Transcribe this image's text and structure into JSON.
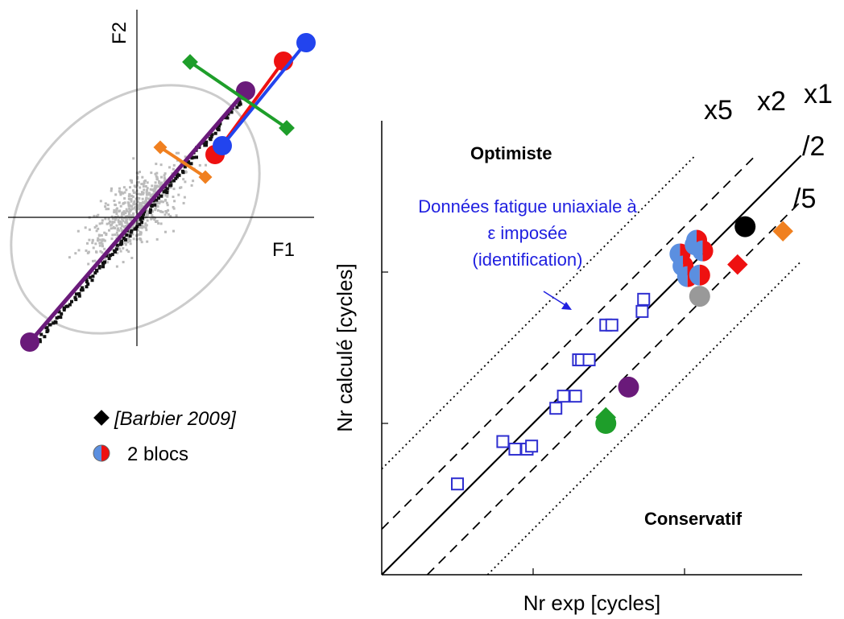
{
  "left_panel": {
    "axis_x_label": "F1",
    "axis_y_label": "F2",
    "legend": [
      {
        "marker": "black-diamond",
        "text": "[Barbier 2009]"
      },
      {
        "marker": "half-blue-half-red-circle",
        "text": "2 blocs"
      }
    ]
  },
  "right_panel": {
    "xlabel": "Nr exp [cycles]",
    "ylabel": "Nr calculé [cycles]",
    "region_top": "Optimiste",
    "region_bottom": "Conservatif",
    "annotation": [
      "Données fatigue uniaxiale à",
      "ε imposée",
      "(identification)"
    ],
    "band_labels": {
      "x5": "x5",
      "x2": "x2",
      "x1": "x1",
      "d2": "/2",
      "d5": "/5"
    }
  },
  "colors": {
    "blue_square": "#2f2fd0",
    "annotation": "#2020e0",
    "purple": "#6a1a7a",
    "green": "#1e9e2a",
    "red": "#ee1111",
    "orange": "#f08020",
    "light_blue": "#5b8fe0",
    "grey": "#999999",
    "black": "#000000"
  },
  "chart_data": [
    {
      "type": "scatter",
      "description": "F1/F2 plane scatter with ellipse and segment fits",
      "xlabel": "F1",
      "ylabel": "F2",
      "legend": [
        "[Barbier 2009]",
        "2 blocs"
      ],
      "segments": [
        {
          "name": "purple",
          "color": "#6a1a7a",
          "x": [
            -0.95,
            0.95
          ],
          "y": [
            -1.1,
            1.1
          ]
        },
        {
          "name": "red",
          "color": "#ee1111",
          "x": [
            0.7,
            1.35
          ],
          "y": [
            0.55,
            1.45
          ]
        },
        {
          "name": "blue",
          "color": "#2244ee",
          "x": [
            0.75,
            1.5
          ],
          "y": [
            0.65,
            1.6
          ]
        },
        {
          "name": "green",
          "color": "#1e9e2a",
          "x": [
            0.5,
            1.4
          ],
          "y": [
            1.45,
            0.8
          ]
        },
        {
          "name": "orange",
          "color": "#f08020",
          "x": [
            0.2,
            0.6
          ],
          "y": [
            0.6,
            0.3
          ]
        }
      ]
    },
    {
      "type": "scatter",
      "xlabel": "Nr exp [cycles]",
      "ylabel": "Nr calculé [cycles]",
      "axes": "log-log, 3 decades",
      "xlim": [
        0,
        3
      ],
      "ylim": [
        0,
        3
      ],
      "reference_lines": [
        {
          "name": "x5",
          "factor": 5,
          "style": "dotted"
        },
        {
          "name": "x2",
          "factor": 2,
          "style": "dashed"
        },
        {
          "name": "x1",
          "factor": 1,
          "style": "solid"
        },
        {
          "name": "/2",
          "factor": 0.5,
          "style": "dashed"
        },
        {
          "name": "/5",
          "factor": 0.2,
          "style": "dotted"
        }
      ],
      "series": [
        {
          "name": "Données fatigue uniaxiale à ε imposée (identification)",
          "marker": "open-square",
          "color": "#2f2fd0",
          "points": [
            [
              0.5,
              0.6
            ],
            [
              0.8,
              0.88
            ],
            [
              0.88,
              0.83
            ],
            [
              0.96,
              0.83
            ],
            [
              0.99,
              0.85
            ],
            [
              1.15,
              1.1
            ],
            [
              1.2,
              1.18
            ],
            [
              1.28,
              1.18
            ],
            [
              1.3,
              1.42
            ],
            [
              1.32,
              1.42
            ],
            [
              1.37,
              1.42
            ],
            [
              1.48,
              1.65
            ],
            [
              1.52,
              1.65
            ],
            [
              1.72,
              1.74
            ],
            [
              1.73,
              1.82
            ]
          ]
        },
        {
          "marker": "circle",
          "color": "#6a1a7a",
          "points": [
            [
              1.63,
              1.24
            ]
          ]
        },
        {
          "marker": "circle",
          "color": "#1e9e2a",
          "points": [
            [
              1.48,
              1.0
            ]
          ]
        },
        {
          "marker": "diamond",
          "color": "#1e9e2a",
          "points": [
            [
              1.48,
              1.04
            ]
          ]
        },
        {
          "marker": "circle-half",
          "color": "#5b8fe0",
          "points": [
            [
              1.97,
              2.12
            ],
            [
              1.99,
              2.04
            ],
            [
              2.02,
              1.97
            ],
            [
              2.07,
              2.18
            ]
          ]
        },
        {
          "marker": "circle-half",
          "color": "#ee1111",
          "points": [
            [
              2.08,
              2.21
            ],
            [
              2.12,
              2.14
            ],
            [
              2.1,
              1.98
            ]
          ]
        },
        {
          "marker": "circle",
          "color": "#999999",
          "points": [
            [
              2.1,
              1.84
            ]
          ]
        },
        {
          "marker": "circle",
          "color": "#000000",
          "points": [
            [
              2.4,
              2.3
            ]
          ]
        },
        {
          "marker": "diamond",
          "color": "#ee1111",
          "points": [
            [
              2.35,
              2.05
            ]
          ]
        },
        {
          "marker": "diamond",
          "color": "#f08020",
          "points": [
            [
              2.65,
              2.27
            ]
          ]
        }
      ]
    }
  ]
}
